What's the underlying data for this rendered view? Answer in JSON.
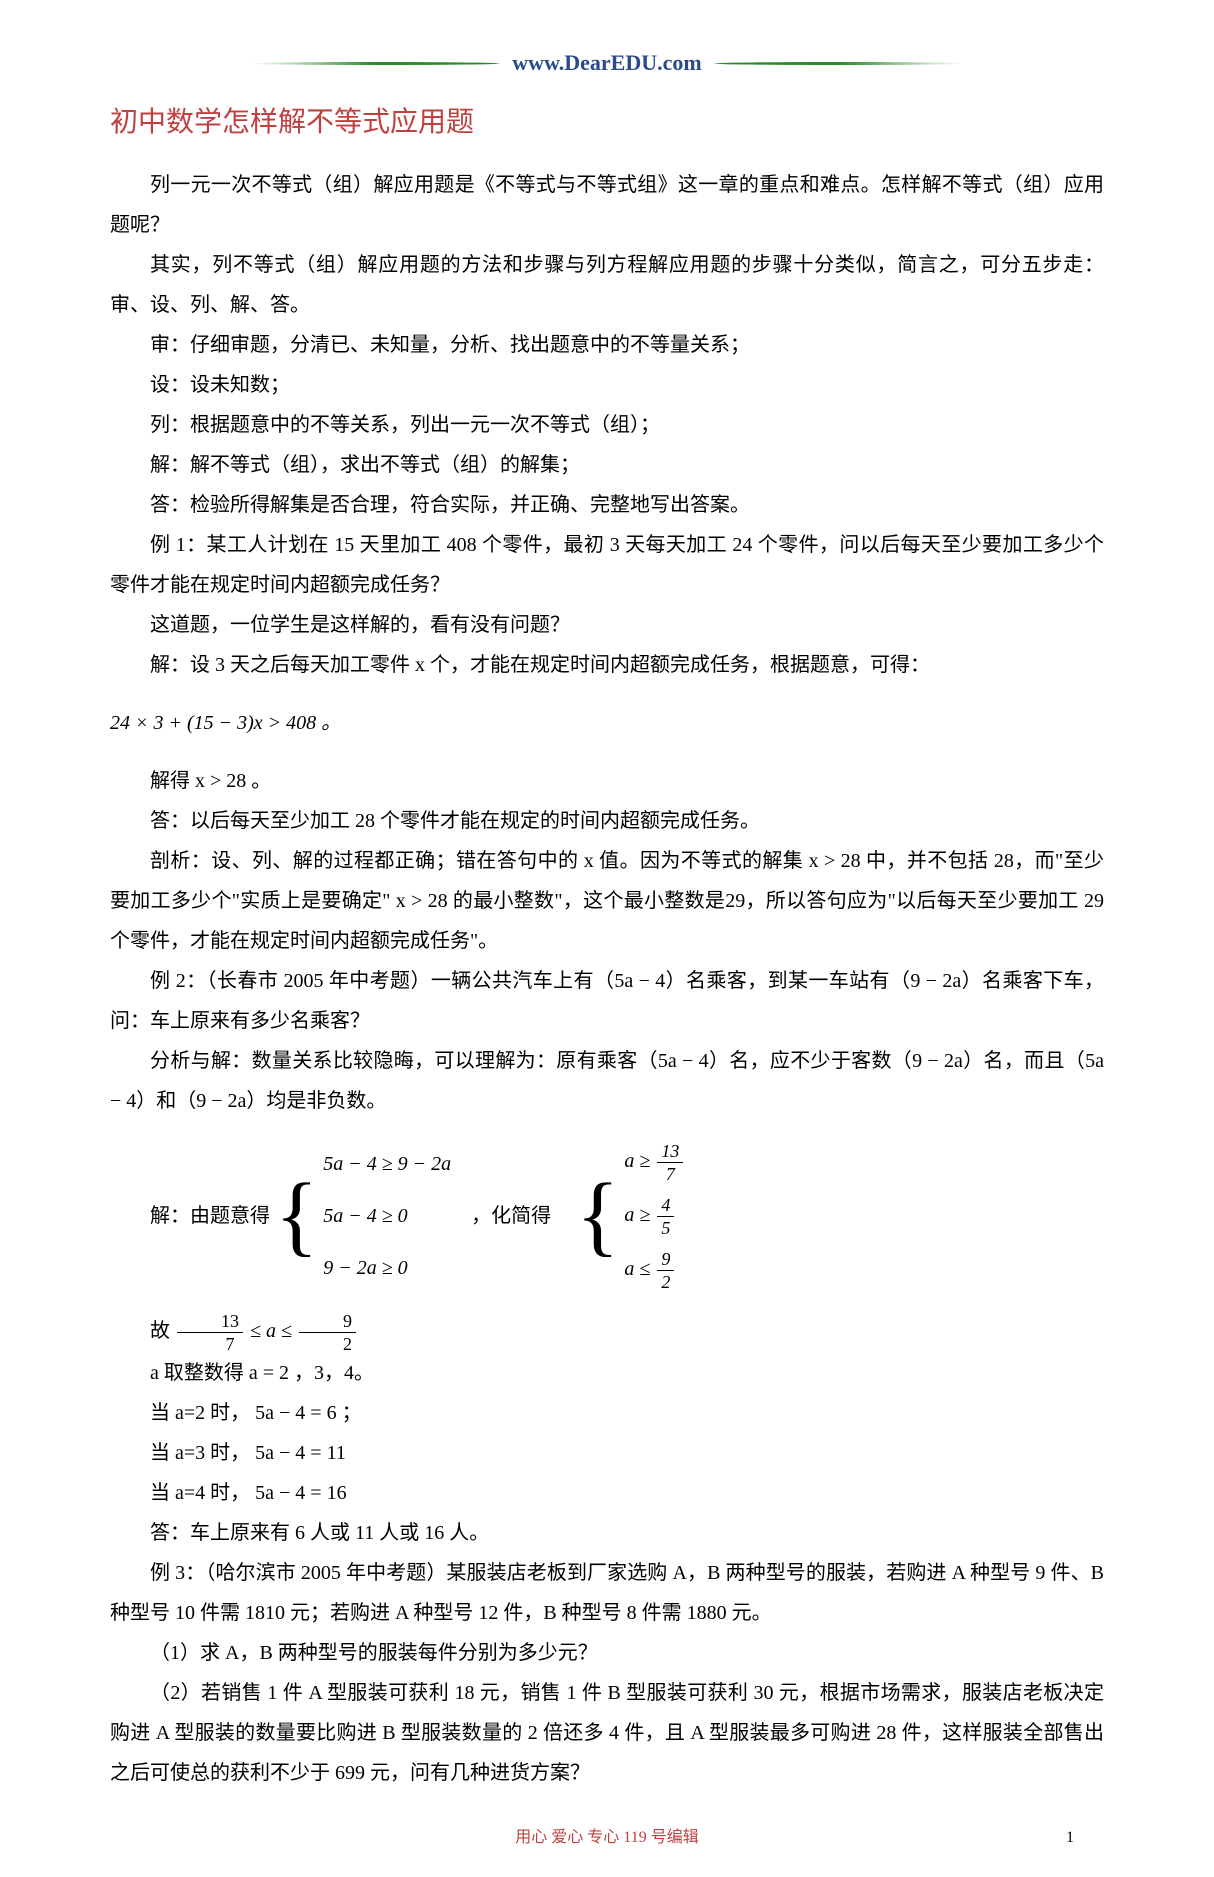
{
  "banner": {
    "url_text": "www.DearEDU.com"
  },
  "title": "初中数学怎样解不等式应用题",
  "paragraphs": {
    "p1": "列一元一次不等式（组）解应用题是《不等式与不等式组》这一章的重点和难点。怎样解不等式（组）应用题呢？",
    "p2": "其实，列不等式（组）解应用题的方法和步骤与列方程解应用题的步骤十分类似，简言之，可分五步走：审、设、列、解、答。",
    "p3": "审：仔细审题，分清已、未知量，分析、找出题意中的不等量关系；",
    "p4": "设：设未知数；",
    "p5": "列：根据题意中的不等关系，列出一元一次不等式（组）；",
    "p6": "解：解不等式（组），求出不等式（组）的解集；",
    "p7": "答：检验所得解集是否合理，符合实际，并正确、完整地写出答案。",
    "p8": "例 1：某工人计划在 15 天里加工 408 个零件，最初 3 天每天加工 24 个零件，问以后每天至少要加工多少个零件才能在规定时间内超额完成任务？",
    "p9": "这道题，一位学生是这样解的，看有没有问题？",
    "p10": "解：设 3 天之后每天加工零件 x 个，才能在规定时间内超额完成任务，根据题意，可得：",
    "p11": "解得 x > 28 。",
    "p12": "答：以后每天至少加工 28 个零件才能在规定的时间内超额完成任务。",
    "p13": "剖析：设、列、解的过程都正确；错在答句中的 x 值。因为不等式的解集 x > 28 中，并不包括 28，而\"至少要加工多少个\"实质上是要确定\" x > 28 的最小整数\"，这个最小整数是29，所以答句应为\"以后每天至少要加工 29 个零件，才能在规定时间内超额完成任务\"。",
    "p14": "例 2：（长春市 2005 年中考题）一辆公共汽车上有（5a − 4）名乘客，到某一车站有（9 − 2a）名乘客下车，问：车上原来有多少名乘客？",
    "p15": "分析与解：数量关系比较隐晦，可以理解为：原有乘客（5a − 4）名，应不少于客数（9 − 2a）名，而且（5a − 4）和（9 − 2a）均是非负数。",
    "p16": "a 取整数得 a = 2 ，3，4。",
    "p17": "当 a=2 时， 5a − 4 = 6 ；",
    "p18": "当 a=3 时， 5a − 4 = 11",
    "p19": "当 a=4 时， 5a − 4 = 16",
    "p20": "答：车上原来有 6 人或 11 人或 16 人。",
    "p21": "例 3：（哈尔滨市 2005 年中考题）某服装店老板到厂家选购 A，B 两种型号的服装，若购进 A 种型号 9 件、B 种型号 10 件需 1810 元；若购进 A 种型号 12 件，B 种型号 8 件需 1880 元。",
    "p22": "（1）求 A，B 两种型号的服装每件分别为多少元？",
    "p23": "（2）若销售 1 件 A 型服装可获利 18 元，销售 1 件 B 型服装可获利 30 元，根据市场需求，服装店老板决定购进 A 型服装的数量要比购进 B 型服装数量的 2 倍还多 4 件，且 A 型服装最多可购进 28 件，这样服装全部售出之后可使总的获利不少于 699 元，问有几种进货方案？"
  },
  "math": {
    "eq1": "24 × 3 + (15 − 3)x > 408 。",
    "system_label": "解：由题意得",
    "sys_row1": "5a − 4 ≥ 9 − 2a",
    "sys_row2": "5a − 4 ≥ 0",
    "sys_row3": "9 − 2a ≥ 0",
    "between": "，化简得",
    "result_label": "故",
    "a_var": "a",
    "le": "≤",
    "ge": "≥",
    "frac_13": "13",
    "frac_7": "7",
    "frac_4": "4",
    "frac_5": "5",
    "frac_9": "9",
    "frac_2": "2"
  },
  "footer": {
    "text": "用心 爱心 专心   119 号编辑",
    "page": "1"
  },
  "colors": {
    "title_color": "#c04040",
    "banner_green": "#2a8a2a",
    "banner_blue": "#2a4a8a",
    "footer_color": "#c04040",
    "text_color": "#000000",
    "background": "#ffffff"
  },
  "typography": {
    "title_fontsize": 28,
    "body_fontsize": 20,
    "line_height": 2.0,
    "font_family": "SimSun"
  }
}
